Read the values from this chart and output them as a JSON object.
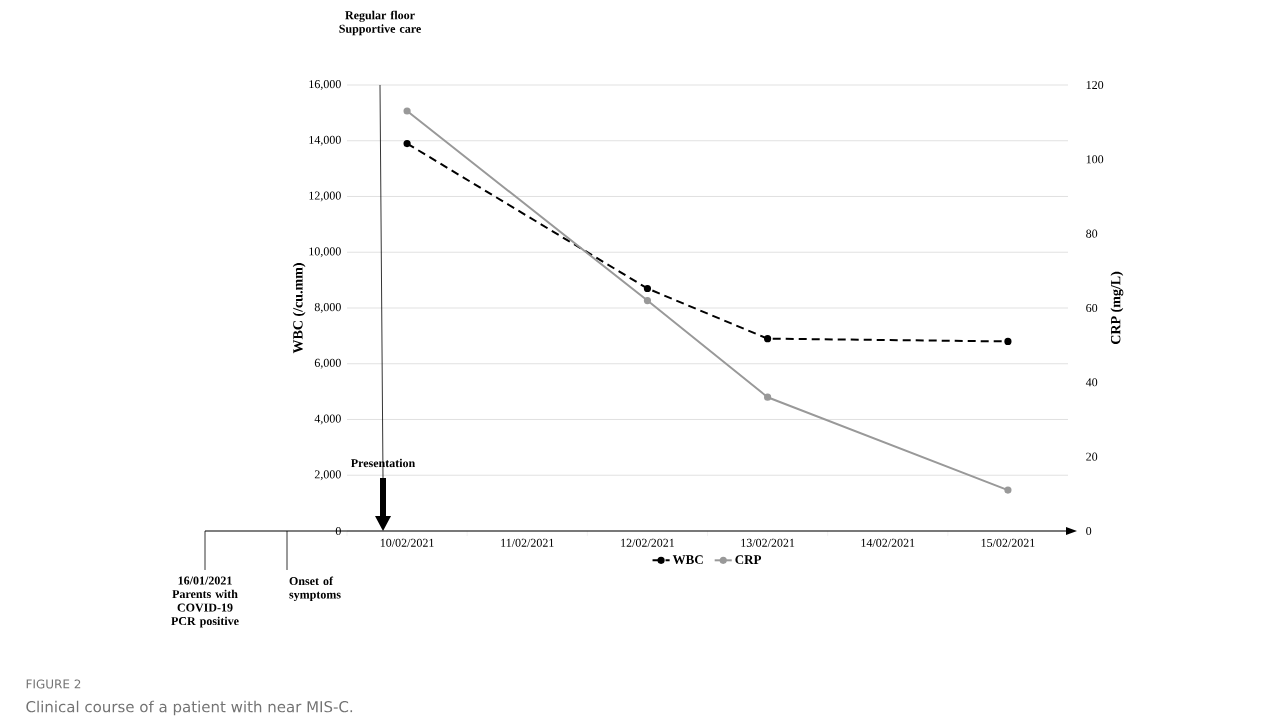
{
  "chart_data": {
    "type": "line",
    "xlabel": null,
    "ylabel": "WBC (/cu.mm)",
    "y2label": "CRP (mg/L)",
    "categories": [
      "10/02/2021",
      "11/02/2021",
      "12/02/2021",
      "13/02/2021",
      "14/02/2021",
      "15/02/2021"
    ],
    "series": [
      {
        "name": "WBC",
        "color": "#000000",
        "line_style": "dashed",
        "values": [
          13900,
          null,
          8700,
          6900,
          null,
          6800
        ]
      },
      {
        "name": "CRP",
        "color": "#999999",
        "line_style": "solid",
        "axis": "y2",
        "values": [
          113,
          null,
          62,
          36,
          null,
          11
        ]
      }
    ],
    "ylim": [
      0,
      16000
    ],
    "yticks": [
      0,
      {
        "value": 2000,
        "label": "2,000"
      },
      {
        "value": 4000,
        "label": "4,000"
      },
      {
        "value": 6000,
        "label": "6,000"
      },
      {
        "value": 8000,
        "label": "8,000"
      },
      {
        "value": 10000,
        "label": "10,000"
      },
      {
        "value": 12000,
        "label": "12,000"
      },
      {
        "value": 14000,
        "label": "14,000"
      },
      {
        "value": 16000,
        "label": "16,000"
      }
    ],
    "y2lim": [
      0,
      120
    ],
    "y2ticks": [
      0,
      20,
      40,
      60,
      80,
      100,
      120
    ],
    "grid": "y",
    "legend": "bottom",
    "marker": "circle",
    "annotations": [
      "Regular floor Supportive care",
      "Presentation",
      "16/01/2021 Parents with COVID-19 PCR positive",
      "Onset of symptoms",
      "FIGURE 2",
      "Clinical course of a patient with near MIS-C."
    ]
  }
}
